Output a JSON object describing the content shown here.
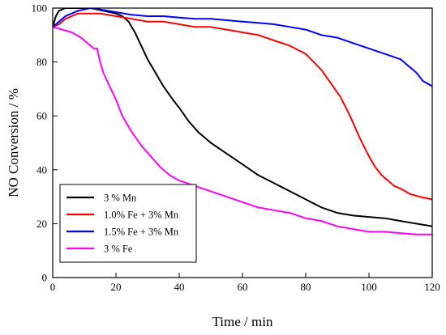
{
  "chart_data": {
    "type": "line",
    "title": "",
    "xlabel": "Time / min",
    "ylabel": "NO Conversion / %",
    "xlim": [
      0,
      120
    ],
    "ylim": [
      0,
      100
    ],
    "xticks": [
      0,
      20,
      40,
      60,
      80,
      100,
      120
    ],
    "yticks": [
      0,
      20,
      40,
      60,
      80,
      100
    ],
    "grid": false,
    "legend_position": "bottom-left",
    "series": [
      {
        "name": "3 % Mn",
        "color": "#000000",
        "x": [
          0,
          1,
          2,
          4,
          6,
          8,
          10,
          12,
          14,
          16,
          18,
          20,
          22,
          24,
          26,
          28,
          30,
          32,
          35,
          38,
          40,
          43,
          46,
          50,
          55,
          60,
          65,
          70,
          75,
          80,
          85,
          90,
          95,
          100,
          105,
          110,
          115,
          120
        ],
        "y": [
          93,
          97,
          99,
          100,
          100,
          100,
          100,
          100,
          99.5,
          99,
          98.5,
          98,
          97,
          95,
          91,
          86,
          81,
          77,
          71,
          66,
          63,
          58,
          54,
          50,
          46,
          42,
          38,
          35,
          32,
          29,
          26,
          24,
          23,
          22.5,
          22,
          21,
          20,
          19
        ]
      },
      {
        "name": "1.0% Fe + 3% Mn",
        "color": "#ff0000",
        "x": [
          0,
          2,
          4,
          6,
          8,
          10,
          15,
          20,
          25,
          30,
          35,
          40,
          45,
          50,
          55,
          60,
          65,
          70,
          75,
          80,
          85,
          88,
          91,
          94,
          97,
          100,
          102,
          104,
          106,
          108,
          110,
          113,
          116,
          120
        ],
        "y": [
          93,
          94,
          96,
          97,
          98,
          98,
          98,
          97,
          96,
          95,
          95,
          94,
          93,
          93,
          92,
          91,
          90,
          88,
          86,
          83,
          77,
          72,
          67,
          60,
          52,
          45,
          41,
          38,
          36,
          34,
          33,
          31,
          30,
          29
        ]
      },
      {
        "name": "1.5% Fe + 3% Mn",
        "color": "#0000ff",
        "x": [
          0,
          2,
          4,
          6,
          8,
          10,
          12,
          15,
          20,
          25,
          30,
          35,
          40,
          45,
          50,
          55,
          60,
          65,
          70,
          75,
          80,
          85,
          90,
          95,
          100,
          105,
          110,
          113,
          115,
          117,
          120
        ],
        "y": [
          93,
          95,
          97,
          98,
          99,
          99.5,
          100,
          99.5,
          98.5,
          97.5,
          97,
          97,
          96.5,
          96,
          96,
          95.5,
          95,
          94.5,
          94,
          93,
          92,
          90,
          89,
          87,
          85,
          83,
          81,
          78,
          76,
          73,
          71
        ]
      },
      {
        "name": "3 % Fe",
        "color": "#ff00ff",
        "x": [
          0,
          3,
          6,
          9,
          12,
          13,
          14,
          15,
          16,
          18,
          20,
          22,
          25,
          28,
          31,
          34,
          37,
          40,
          45,
          50,
          55,
          60,
          65,
          70,
          75,
          80,
          85,
          90,
          95,
          100,
          105,
          110,
          115,
          120
        ],
        "y": [
          93,
          92,
          91,
          89,
          86,
          85,
          85,
          80,
          76,
          71,
          66,
          60,
          54,
          49,
          45,
          41,
          38,
          36,
          34,
          32,
          30,
          28,
          26,
          25,
          24,
          22,
          21,
          19,
          18,
          17,
          17,
          16.5,
          16,
          16
        ]
      }
    ]
  }
}
